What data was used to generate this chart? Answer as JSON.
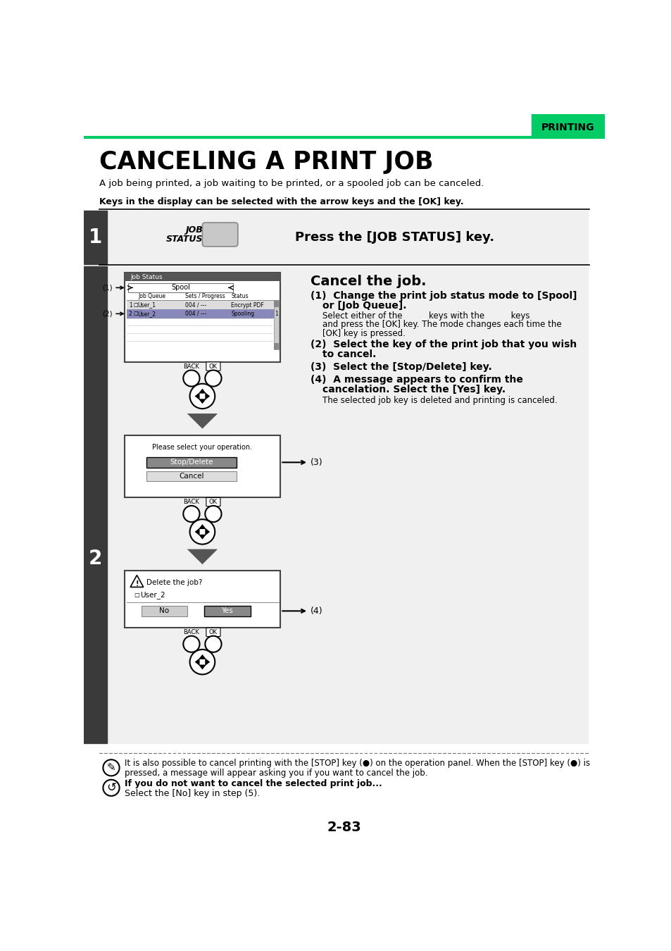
{
  "title": "CANCELING A PRINT JOB",
  "subtitle": "A job being printed, a job waiting to be printed, or a spooled job can be canceled.",
  "keys_note": "Keys in the display can be selected with the arrow keys and the [OK] key.",
  "header_label": "PRINTING",
  "step1_label": "1",
  "step1_instruction": "Press the [JOB STATUS] key.",
  "step2_label": "2",
  "step2_title": "Cancel the job.",
  "page_number": "2-83",
  "bg_color": "#ffffff",
  "sidebar_color": "#3a3a3a",
  "green_color": "#00cc66",
  "screen_bg": "#ffffff",
  "screen_border": "#555555",
  "row_highlight": "#bbbbbb",
  "row_selected": "#9999cc",
  "btn_highlight": "#9999cc",
  "dark_gray": "#666666"
}
